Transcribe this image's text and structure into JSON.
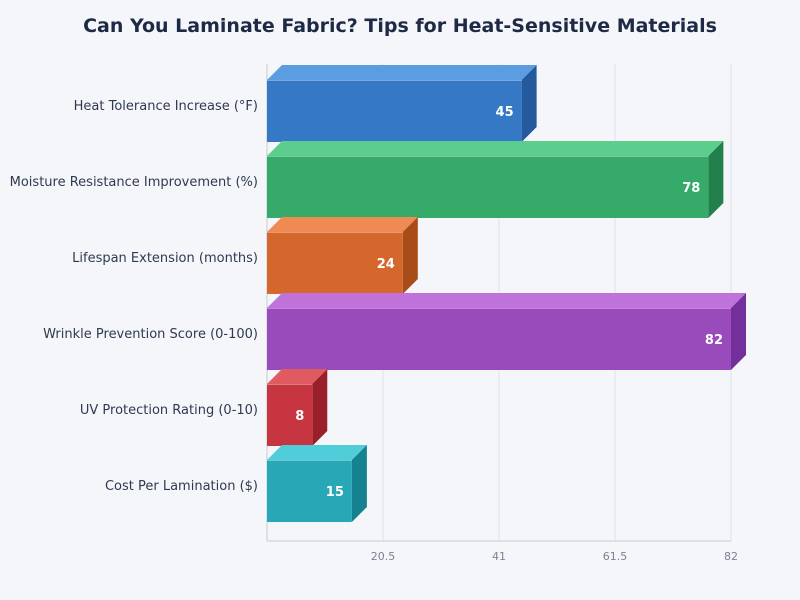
{
  "chart_data": {
    "type": "bar",
    "orientation": "horizontal",
    "title": "Can You Laminate Fabric? Tips for Heat-Sensitive Materials",
    "xlabel": "",
    "ylabel": "",
    "categories": [
      "Heat Tolerance Increase (°F)",
      "Moisture Resistance Improvement (%)",
      "Lifespan Extension (months)",
      "Wrinkle Prevention Score (0-100)",
      "UV Protection Rating (0-10)",
      "Cost Per Lamination ($)"
    ],
    "values": [
      45,
      78,
      24,
      82,
      8,
      15
    ],
    "colors": [
      "#3578c6",
      "#36ab69",
      "#d5672c",
      "#9a4bbb",
      "#c73640",
      "#28a7b6"
    ],
    "side_colors": [
      "#245a9c",
      "#22804c",
      "#a84c1a",
      "#74309a",
      "#99202a",
      "#17828f"
    ],
    "top_colors": [
      "#5b9de0",
      "#5ccd8c",
      "#ef8a52",
      "#bf72d9",
      "#e05a62",
      "#4fcdd9"
    ],
    "xlim": [
      0,
      82
    ],
    "xticks": [
      "20.5",
      "41",
      "61.5",
      "82"
    ],
    "xtick_values": [
      20.5,
      41,
      61.5,
      82
    ],
    "grid": true,
    "legend": "none"
  }
}
